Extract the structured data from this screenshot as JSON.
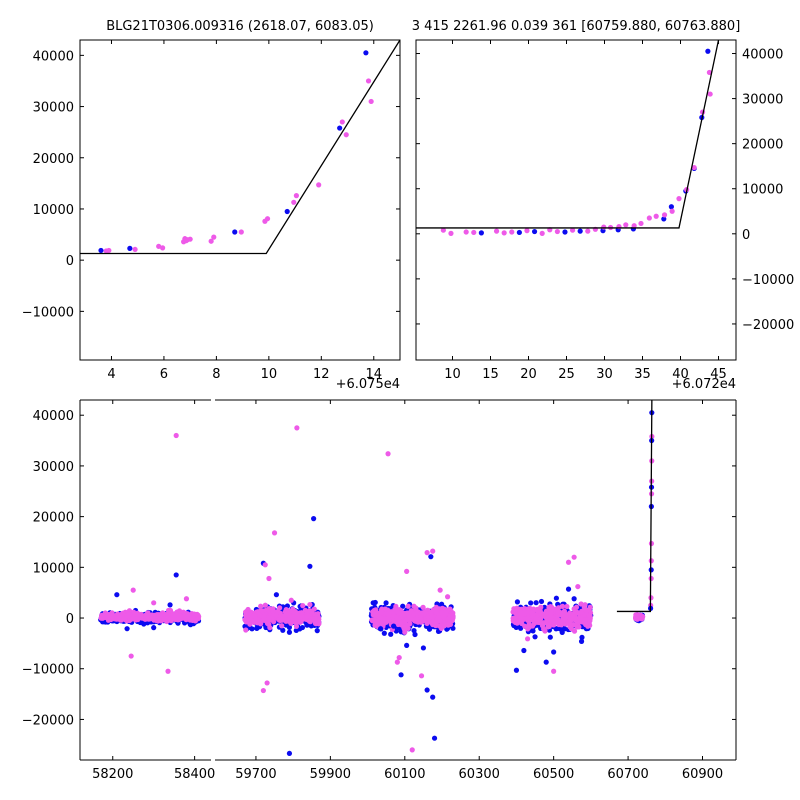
{
  "colors": {
    "series_blue": "#0b0bf0",
    "series_pink": "#ee5ae8",
    "model": "#000000"
  },
  "chart_data": [
    {
      "type": "scatter",
      "panel": "top-left",
      "title": "BLG21T0306.009316 (2618.07, 6083.05)",
      "xlim": [
        2.8,
        15.0
      ],
      "ylim": [
        -19500,
        43000
      ],
      "x_offset_label": "+6.075e4",
      "xticks": [
        4,
        6,
        8,
        10,
        12,
        14
      ],
      "xtick_labels": [
        "4",
        "6",
        "8",
        "10",
        "12",
        "14"
      ],
      "yticks": [
        -10000,
        0,
        10000,
        20000,
        30000,
        40000
      ],
      "ytick_labels": [
        "−10000",
        "0",
        "10000",
        "20000",
        "30000",
        "40000"
      ],
      "ytick_side": "left",
      "series": [
        {
          "color": "#0b0bf0",
          "x": [
            3.6,
            4.7,
            6.8,
            8.7,
            10.7,
            12.7,
            13.7
          ],
          "y": [
            1900,
            2300,
            3900,
            5500,
            9500,
            25800,
            40500
          ]
        },
        {
          "color": "#ee5ae8",
          "x": [
            3.8,
            3.9,
            4.9,
            5.8,
            5.95,
            6.75,
            6.8,
            6.85,
            6.9,
            7.0,
            7.8,
            7.9,
            8.95,
            9.85,
            9.95,
            10.95,
            11.05,
            11.9,
            12.8,
            12.95,
            13.8,
            13.9
          ],
          "y": [
            1800,
            1900,
            2100,
            2700,
            2400,
            3600,
            4200,
            3800,
            4000,
            4100,
            3700,
            4500,
            5500,
            7600,
            8100,
            11300,
            12600,
            14700,
            27000,
            24500,
            35000,
            31000
          ]
        }
      ],
      "model": {
        "x": [
          2.8,
          9.9,
          15.0
        ],
        "y": [
          1300,
          1300,
          43000
        ]
      }
    },
    {
      "type": "scatter",
      "panel": "top-right",
      "title": "3 415 2261.96 0.039 361 [60759.880, 60763.880]",
      "xlim": [
        5.2,
        47.3
      ],
      "ylim": [
        -28000,
        43000
      ],
      "x_offset_label": "+6.072e4",
      "xticks": [
        10,
        15,
        20,
        25,
        30,
        35,
        40,
        45
      ],
      "xtick_labels": [
        "10",
        "15",
        "20",
        "25",
        "30",
        "35",
        "40",
        "45"
      ],
      "yticks": [
        -20000,
        -10000,
        0,
        10000,
        20000,
        30000,
        40000
      ],
      "ytick_labels": [
        "−20000",
        "−10000",
        "0",
        "10000",
        "20000",
        "30000",
        "40000"
      ],
      "ytick_side": "right",
      "series": [
        {
          "color": "#0b0bf0",
          "x": [
            13.8,
            18.8,
            20.8,
            24.8,
            26.8,
            29.8,
            31.8,
            33.8,
            37.8,
            38.8,
            40.7,
            41.8,
            42.8,
            43.6
          ],
          "y": [
            200,
            300,
            500,
            400,
            600,
            700,
            900,
            1100,
            3300,
            6000,
            9500,
            14500,
            25800,
            40500
          ]
        },
        {
          "color": "#ee5ae8",
          "x": [
            8.8,
            9.8,
            11.8,
            12.8,
            15.8,
            16.8,
            17.8,
            19.8,
            21.8,
            22.8,
            23.8,
            25.8,
            27.8,
            28.8,
            29.9,
            30.8,
            31.9,
            32.8,
            33.9,
            34.8,
            35.9,
            36.8,
            37.9,
            38.9,
            39.8,
            40.8,
            41.8,
            42.9,
            43.8,
            43.9
          ],
          "y": [
            800,
            100,
            400,
            300,
            600,
            200,
            400,
            700,
            100,
            900,
            500,
            800,
            600,
            1000,
            1500,
            1400,
            1600,
            2000,
            1800,
            2300,
            3500,
            3900,
            4200,
            5000,
            7800,
            9800,
            14700,
            27000,
            35800,
            31000
          ]
        }
      ],
      "model": {
        "x": [
          5.2,
          39.8,
          45.0
        ],
        "y": [
          1300,
          1300,
          43000
        ]
      }
    },
    {
      "type": "scatter",
      "panel": "bottom",
      "title": "",
      "ylim": [
        -28000,
        43000
      ],
      "yticks": [
        -20000,
        -10000,
        0,
        10000,
        20000,
        30000,
        40000
      ],
      "ytick_labels": [
        "−20000",
        "−10000",
        "0",
        "10000",
        "20000",
        "30000",
        "40000"
      ],
      "ytick_side": "left",
      "broken_x_axis": true,
      "segments": [
        {
          "xlim": [
            58120,
            58440
          ],
          "xticks": [
            58200,
            58400
          ],
          "xtick_labels": [
            "58200",
            "58400"
          ]
        },
        {
          "xlim": [
            59590,
            60990
          ],
          "xticks": [
            59700,
            59900,
            60100,
            60300,
            60500,
            60700,
            60900
          ],
          "xtick_labels": [
            "59700",
            "59900",
            "60100",
            "60300",
            "60500",
            "60700",
            "60900"
          ]
        }
      ],
      "clusters": [
        {
          "range": [
            58170,
            58410
          ],
          "scatter_sd": 500
        },
        {
          "range": [
            59670,
            59870
          ],
          "scatter_sd": 1000
        },
        {
          "range": [
            60010,
            60230
          ],
          "scatter_sd": 1200
        },
        {
          "range": [
            60390,
            60600
          ],
          "scatter_sd": 1300
        },
        {
          "range": [
            60720,
            60740
          ],
          "scatter_sd": 400
        }
      ],
      "outliers_blue": {
        "x": [
          58210,
          58340,
          58355,
          59720,
          59755,
          59790,
          59845,
          59855,
          59790,
          60045,
          60090,
          60105,
          60150,
          60160,
          60175,
          60170,
          60180,
          60400,
          60420,
          60450,
          60480,
          60500,
          60540,
          60555,
          60575,
          58235,
          58300,
          60035,
          60070
        ],
        "y": [
          4600,
          2600,
          8500,
          10800,
          4600,
          -2800,
          10200,
          19600,
          -26700,
          -3000,
          -11200,
          -5400,
          -5900,
          -14200,
          -15600,
          12100,
          -23700,
          -10300,
          -6400,
          -3700,
          -8700,
          -6700,
          5700,
          3800,
          -4600,
          -2100,
          -1900,
          -2100,
          -1600
        ]
      },
      "outliers_pink": {
        "x": [
          58245,
          58335,
          58355,
          59725,
          59735,
          59750,
          59795,
          59810,
          59720,
          59730,
          60055,
          60080,
          60085,
          60105,
          60145,
          60160,
          60175,
          60195,
          60215,
          60120,
          60500,
          60540,
          60555,
          60565,
          58250,
          58300,
          58380,
          60100,
          60430
        ],
        "y": [
          -7500,
          -10500,
          36000,
          10500,
          7800,
          16800,
          3500,
          37500,
          -14300,
          -12800,
          32400,
          -8700,
          -7800,
          9200,
          -11400,
          12900,
          13200,
          5500,
          4200,
          -26000,
          -10500,
          11000,
          12000,
          6200,
          5500,
          3000,
          3800,
          -2800,
          -4100
        ]
      },
      "event_blue": {
        "x": [
          60760.5,
          60762.2,
          60762.6,
          60763.0,
          60763.4,
          60763.8
        ],
        "y": [
          1900,
          9500,
          22000,
          25800,
          35000,
          40500
        ]
      },
      "event_pink": {
        "x": [
          60760.7,
          60761.5,
          60762.0,
          60762.4,
          60762.8,
          60763.1,
          60763.3,
          60763.6,
          60763.9
        ],
        "y": [
          2500,
          4000,
          7800,
          11300,
          14700,
          24500,
          27000,
          31000,
          35800
        ]
      },
      "model": {
        "x": [
          60670,
          60759.9,
          60763.9
        ],
        "y": [
          1300,
          1300,
          43000
        ]
      }
    }
  ]
}
